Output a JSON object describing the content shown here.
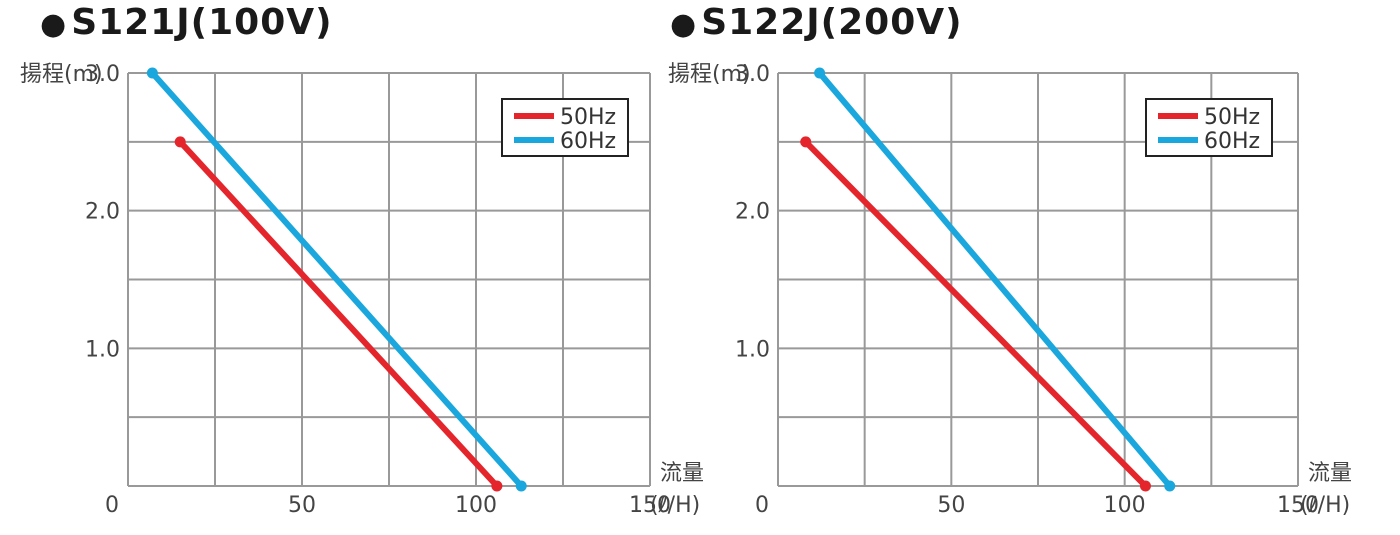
{
  "colors": {
    "series_50hz": "#e4262c",
    "series_60hz": "#1aa7dd",
    "grid": "#999999",
    "legend_border": "#222222"
  },
  "chart_data": [
    {
      "type": "line",
      "title": "S121J(100V)",
      "ylabel": "揚程(m)",
      "xlabel": "流量",
      "xunit": "(ℓ/H)",
      "xlim": [
        0,
        150
      ],
      "ylim": [
        0,
        3.0
      ],
      "x_ticks": [
        "0",
        "50",
        "100",
        "150"
      ],
      "y_ticks": [
        "1.0",
        "2.0",
        "3.0"
      ],
      "grid": true,
      "legend_position": "top-right",
      "series": [
        {
          "name": "50Hz",
          "x": [
            15,
            106
          ],
          "y": [
            2.5,
            0
          ]
        },
        {
          "name": "60Hz",
          "x": [
            7,
            113
          ],
          "y": [
            3.0,
            0
          ]
        }
      ]
    },
    {
      "type": "line",
      "title": "S122J(200V)",
      "ylabel": "揚程(m)",
      "xlabel": "流量",
      "xunit": "(ℓ/H)",
      "xlim": [
        0,
        150
      ],
      "ylim": [
        0,
        3.0
      ],
      "x_ticks": [
        "0",
        "50",
        "100",
        "150"
      ],
      "y_ticks": [
        "1.0",
        "2.0",
        "3.0"
      ],
      "grid": true,
      "legend_position": "top-right",
      "series": [
        {
          "name": "50Hz",
          "x": [
            8,
            106
          ],
          "y": [
            2.5,
            0
          ]
        },
        {
          "name": "60Hz",
          "x": [
            12,
            113
          ],
          "y": [
            3.0,
            0
          ]
        }
      ]
    }
  ]
}
